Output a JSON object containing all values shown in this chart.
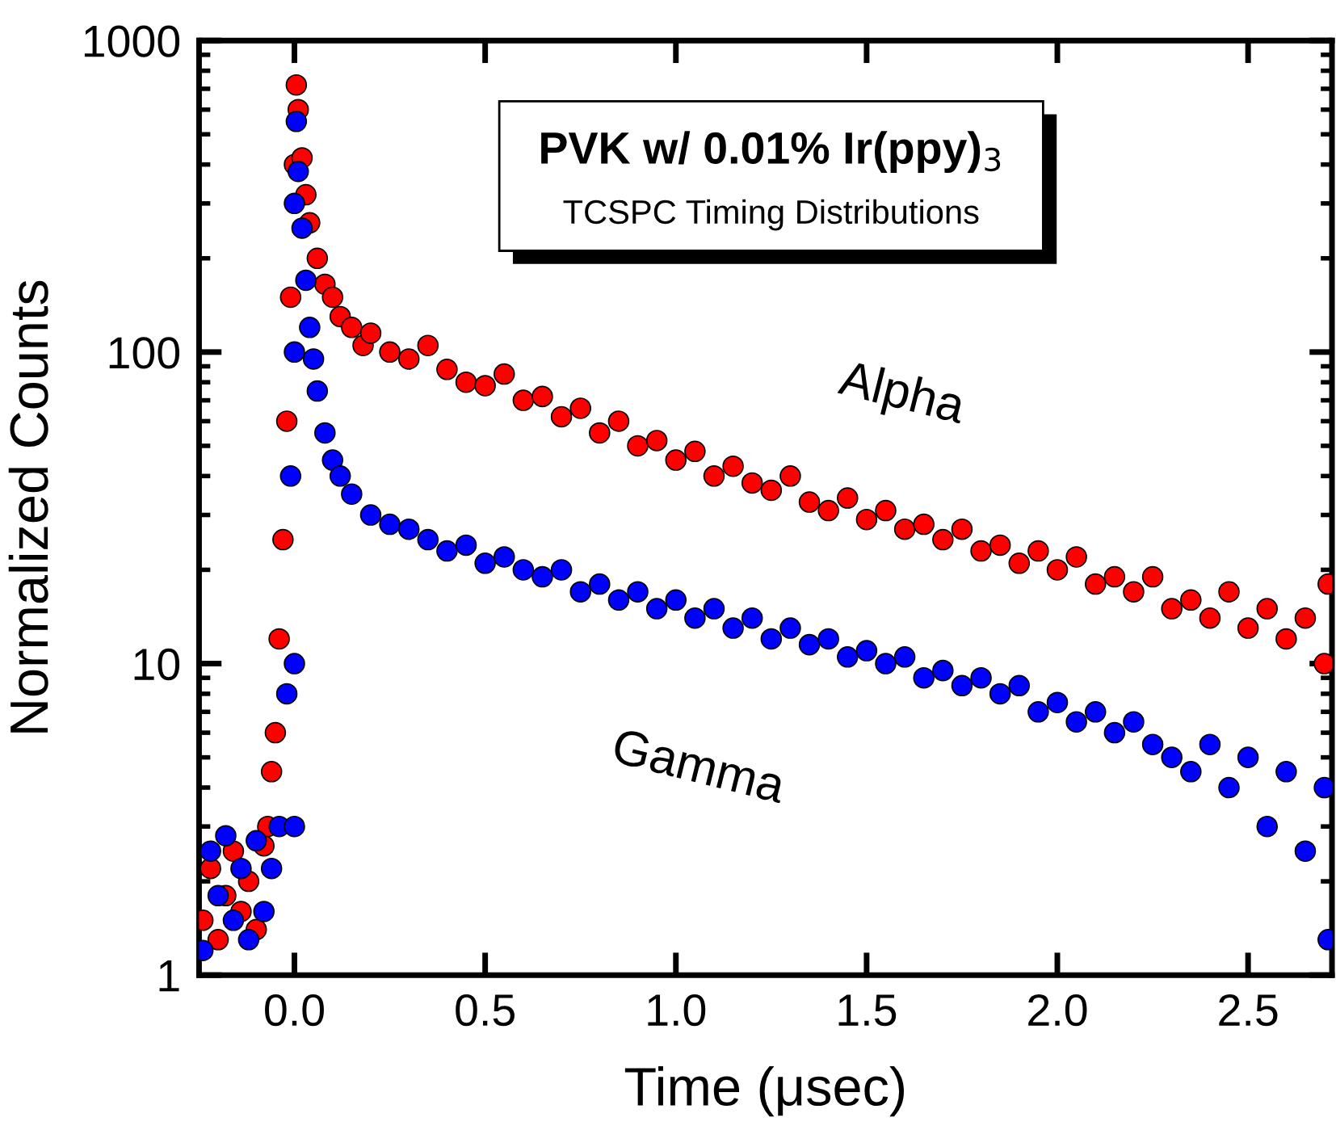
{
  "chart_data": {
    "type": "scatter",
    "title": "PVK w/ 0.01% Ir(ppy)$_{3}$",
    "subtitle": "TCSPC Timing Distributions",
    "xlabel": "Time (μsec)",
    "ylabel": "Normalized Counts",
    "log": "y",
    "grid": false,
    "legend": false,
    "marker": "circle",
    "xlim": [
      -0.25,
      2.72
    ],
    "ylim": [
      1,
      1000
    ],
    "xticks": [
      {
        "value": 0,
        "label": "0.0"
      },
      0.5,
      {
        "value": 1,
        "label": "1.0"
      },
      1.5,
      {
        "value": 2,
        "label": "2.0"
      },
      2.5
    ],
    "yticks": [
      1,
      10,
      100,
      1000
    ],
    "series": [
      {
        "name": "Alpha",
        "color": "#ff0000",
        "x": [
          -0.24,
          -0.22,
          -0.2,
          -0.18,
          -0.16,
          -0.14,
          -0.12,
          -0.1,
          -0.08,
          -0.07,
          -0.06,
          -0.05,
          -0.04,
          -0.03,
          -0.02,
          -0.01,
          0.0,
          0.005,
          0.01,
          0.02,
          0.03,
          0.04,
          0.06,
          0.08,
          0.1,
          0.12,
          0.15,
          0.18,
          0.2,
          0.25,
          0.3,
          0.35,
          0.4,
          0.45,
          0.5,
          0.55,
          0.6,
          0.65,
          0.7,
          0.75,
          0.8,
          0.85,
          0.9,
          0.95,
          1.0,
          1.05,
          1.1,
          1.15,
          1.2,
          1.25,
          1.3,
          1.35,
          1.4,
          1.45,
          1.5,
          1.55,
          1.6,
          1.65,
          1.7,
          1.75,
          1.8,
          1.85,
          1.9,
          1.95,
          2.0,
          2.05,
          2.1,
          2.15,
          2.2,
          2.25,
          2.3,
          2.35,
          2.4,
          2.45,
          2.5,
          2.55,
          2.6,
          2.65,
          2.7,
          2.71
        ],
        "values": [
          1.5,
          2.2,
          1.3,
          1.8,
          2.5,
          1.6,
          2.0,
          1.4,
          2.6,
          3.0,
          4.5,
          6,
          12,
          25,
          60,
          150,
          400,
          720,
          600,
          420,
          320,
          260,
          200,
          165,
          150,
          130,
          120,
          105,
          115,
          100,
          95,
          105,
          88,
          80,
          78,
          85,
          70,
          72,
          62,
          66,
          55,
          60,
          50,
          52,
          45,
          48,
          40,
          43,
          38,
          36,
          40,
          33,
          31,
          34,
          29,
          31,
          27,
          28,
          25,
          27,
          23,
          24,
          21,
          23,
          20,
          22,
          18,
          19,
          17,
          19,
          15,
          16,
          14,
          17,
          13,
          15,
          12,
          14,
          10,
          18
        ]
      },
      {
        "name": "Gamma",
        "color": "#0000ff",
        "x": [
          -0.24,
          -0.22,
          -0.2,
          -0.18,
          -0.16,
          -0.14,
          -0.12,
          -0.1,
          -0.08,
          -0.06,
          -0.04,
          -0.02,
          -0.01,
          0.0,
          0.0,
          0.0,
          0.0,
          0.005,
          0.01,
          0.02,
          0.03,
          0.04,
          0.05,
          0.06,
          0.08,
          0.1,
          0.12,
          0.15,
          0.2,
          0.25,
          0.3,
          0.35,
          0.4,
          0.45,
          0.5,
          0.55,
          0.6,
          0.65,
          0.7,
          0.75,
          0.8,
          0.85,
          0.9,
          0.95,
          1.0,
          1.05,
          1.1,
          1.15,
          1.2,
          1.25,
          1.3,
          1.35,
          1.4,
          1.45,
          1.5,
          1.55,
          1.6,
          1.65,
          1.7,
          1.75,
          1.8,
          1.85,
          1.9,
          1.95,
          2.0,
          2.05,
          2.1,
          2.15,
          2.2,
          2.25,
          2.3,
          2.35,
          2.4,
          2.45,
          2.5,
          2.55,
          2.6,
          2.65,
          2.7,
          2.71
        ],
        "values": [
          1.2,
          2.5,
          1.8,
          2.8,
          1.5,
          2.2,
          1.3,
          2.7,
          1.6,
          2.2,
          3,
          8,
          40,
          3,
          10,
          100,
          300,
          550,
          380,
          250,
          170,
          120,
          95,
          75,
          55,
          45,
          40,
          35,
          30,
          28,
          27,
          25,
          23,
          24,
          21,
          22,
          20,
          19,
          20,
          17,
          18,
          16,
          17,
          15,
          16,
          14,
          15,
          13,
          14,
          12,
          13,
          11.5,
          12,
          10.5,
          11,
          10,
          10.5,
          9,
          9.5,
          8.5,
          9,
          8,
          8.5,
          7,
          7.5,
          6.5,
          7,
          6,
          6.5,
          5.5,
          5,
          4.5,
          5.5,
          4,
          5,
          3,
          4.5,
          2.5,
          4,
          1.3
        ]
      }
    ]
  }
}
